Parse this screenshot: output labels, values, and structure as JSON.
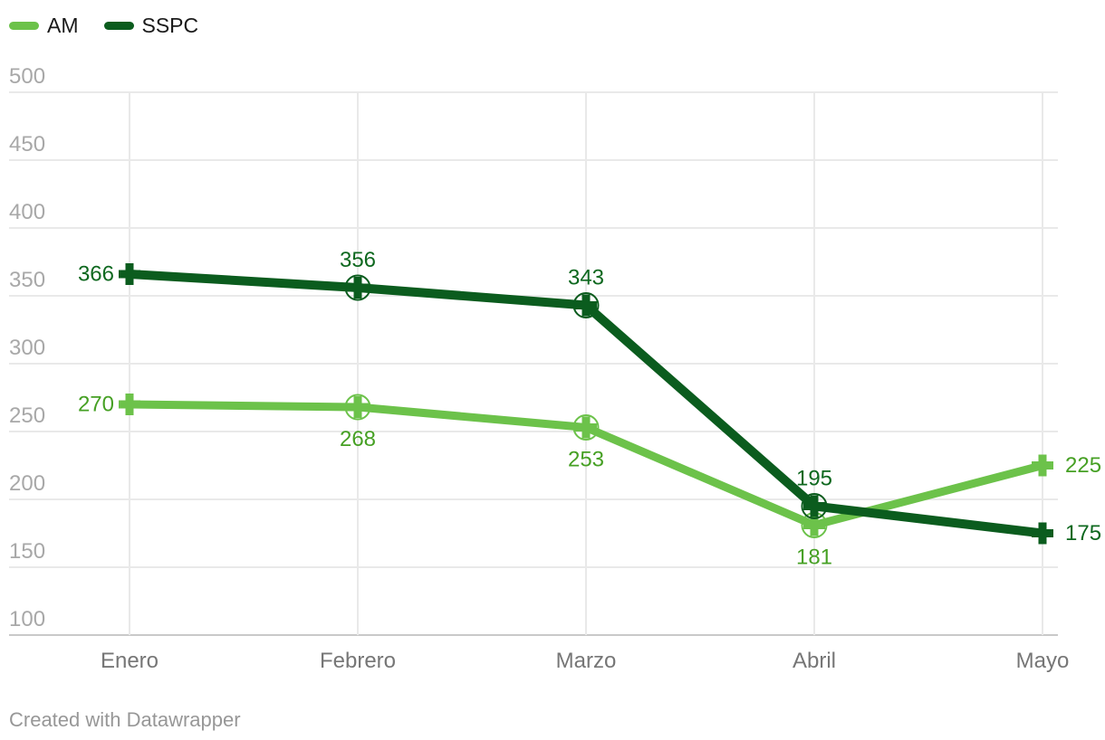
{
  "legend": {
    "items": [
      {
        "label": "AM",
        "color": "#6cc24a"
      },
      {
        "label": "SSPC",
        "color": "#0b5c1e"
      }
    ]
  },
  "footer": {
    "credit": "Created with Datawrapper"
  },
  "colors": {
    "am_line": "#6cc24a",
    "am_label": "#46a024",
    "sspc_line": "#0b5c1e",
    "sspc_label": "#0e681f",
    "gridline": "#e9e9e9",
    "baseline": "#c9c9c9",
    "y_tick_text": "#a8a8a8",
    "x_tick_text": "#767676"
  },
  "chart_data": {
    "type": "line",
    "categories": [
      "Enero",
      "Febrero",
      "Marzo",
      "Abril",
      "Mayo"
    ],
    "series": [
      {
        "name": "AM",
        "color": "#6cc24a",
        "label_color": "#46a024",
        "values": [
          270,
          268,
          253,
          181,
          225
        ]
      },
      {
        "name": "SSPC",
        "color": "#0b5c1e",
        "label_color": "#0e681f",
        "values": [
          366,
          356,
          343,
          195,
          175
        ]
      }
    ],
    "y_ticks": [
      100,
      150,
      200,
      250,
      300,
      350,
      400,
      450,
      500
    ],
    "ylim": [
      100,
      500
    ],
    "title": "",
    "xlabel": "",
    "ylabel": "",
    "grid": "on",
    "legend_position": "top-left",
    "marker": "plus, circled on interior points",
    "credit": "Created with Datawrapper"
  }
}
